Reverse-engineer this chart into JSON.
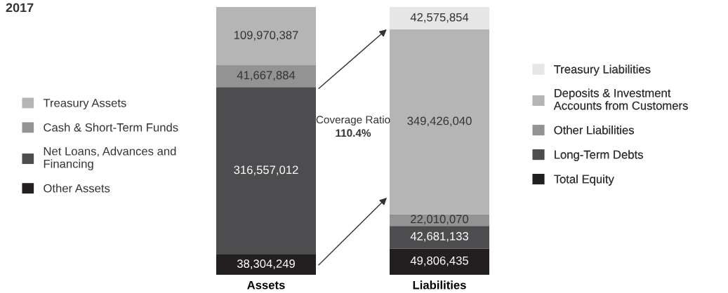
{
  "chart_data": {
    "type": "bar",
    "title": "2017",
    "stacked": true,
    "tick_labels": "x",
    "legend": "left",
    "categories": [
      "Assets",
      "Liabilities"
    ],
    "series": [
      {
        "name": "Other Assets",
        "color": "#231f20",
        "values": [
          38304249,
          null
        ],
        "value_labels": [
          "38,304,249",
          null
        ]
      },
      {
        "name": "Net Loans, Advances and\nFinancing",
        "color": "#4d4d4f",
        "values": [
          316557012,
          null
        ],
        "value_labels": [
          "316,557,012",
          null
        ]
      },
      {
        "name": "Cash & Short-Term Funds",
        "color": "#939393",
        "values": [
          41667884,
          null
        ],
        "value_labels": [
          "41,667,884",
          null
        ]
      },
      {
        "name": "Treasury Assets",
        "color": "#b5b5b5",
        "values": [
          109970387,
          null
        ],
        "value_labels": [
          "109,970,387",
          null
        ]
      },
      {
        "name": "Total Equity",
        "color": "#231f20",
        "values": [
          null,
          49806435
        ],
        "value_labels": [
          null,
          "49,806,435"
        ]
      },
      {
        "name": "Long-Term Debts",
        "color": "#4d4d4f",
        "values": [
          null,
          42681133
        ],
        "value_labels": [
          null,
          "42,681,133"
        ]
      },
      {
        "name": "Other Liabilities",
        "color": "#939393",
        "values": [
          null,
          22010070
        ],
        "value_labels": [
          null,
          "22,010,070"
        ]
      },
      {
        "name": "Deposits & Investment\nAccounts from Customers",
        "color": "#b5b5b5",
        "values": [
          null,
          349426040
        ],
        "value_labels": [
          null,
          "349,426,040"
        ]
      },
      {
        "name": "Treasury Liabilities",
        "color": "#e6e6e6",
        "values": [
          null,
          42575854
        ],
        "value_labels": [
          null,
          "42,575,854"
        ]
      }
    ],
    "annotations": [
      "Coverage Ratio",
      "110.4%"
    ]
  }
}
